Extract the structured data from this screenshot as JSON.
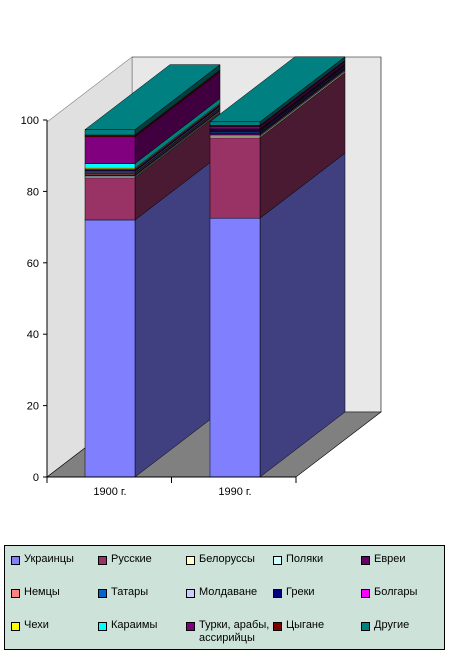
{
  "chart_data": {
    "type": "bar",
    "stacked": true,
    "three_d": true,
    "categories": [
      "1900 г.",
      "1990 г."
    ],
    "ylim": [
      0,
      100
    ],
    "yticks": [
      "0",
      "20",
      "40",
      "60",
      "80",
      "100"
    ],
    "legend_position": "bottom",
    "series": [
      {
        "name": "Украинцы",
        "color": "#8080ff",
        "side": "#404080",
        "values": [
          72,
          72.5
        ]
      },
      {
        "name": "Русские",
        "color": "#993366",
        "side": "#4a1a33",
        "values": [
          11.8,
          22.5
        ]
      },
      {
        "name": "Белоруссы",
        "color": "#ffffcc",
        "side": "#808066",
        "values": [
          0.3,
          0.5
        ]
      },
      {
        "name": "Поляки",
        "color": "#ccffff",
        "side": "#668080",
        "values": [
          0.3,
          0.3
        ]
      },
      {
        "name": "Евреи",
        "color": "#660066",
        "side": "#330033",
        "values": [
          0.3,
          0.5
        ]
      },
      {
        "name": "Немцы",
        "color": "#ff8080",
        "side": "#804040",
        "values": [
          0.3,
          0.1
        ]
      },
      {
        "name": "Татары",
        "color": "#0066cc",
        "side": "#003366",
        "values": [
          0.3,
          0.3
        ]
      },
      {
        "name": "Молдаване",
        "color": "#ccccff",
        "side": "#666680",
        "values": [
          0.3,
          0.2
        ]
      },
      {
        "name": "Греки",
        "color": "#000080",
        "side": "#000040",
        "values": [
          0.3,
          0.2
        ]
      },
      {
        "name": "Болгары",
        "color": "#ff00ff",
        "side": "#800080",
        "values": [
          0.3,
          0.2
        ]
      },
      {
        "name": "Чехи",
        "color": "#ffff00",
        "side": "#808000",
        "values": [
          0.3,
          0.1
        ]
      },
      {
        "name": "Караимы",
        "color": "#00ffff",
        "side": "#008080",
        "values": [
          1.3,
          0.1
        ]
      },
      {
        "name": "Турки, арабы,\nассирийцы",
        "color": "#800080",
        "side": "#400040",
        "values": [
          7.5,
          0.7
        ]
      },
      {
        "name": "Цыгане",
        "color": "#800000",
        "side": "#400000",
        "values": [
          0.5,
          0.3
        ]
      },
      {
        "name": "Другие",
        "color": "#008080",
        "side": "#004040",
        "values": [
          1.5,
          1.0
        ]
      }
    ]
  }
}
